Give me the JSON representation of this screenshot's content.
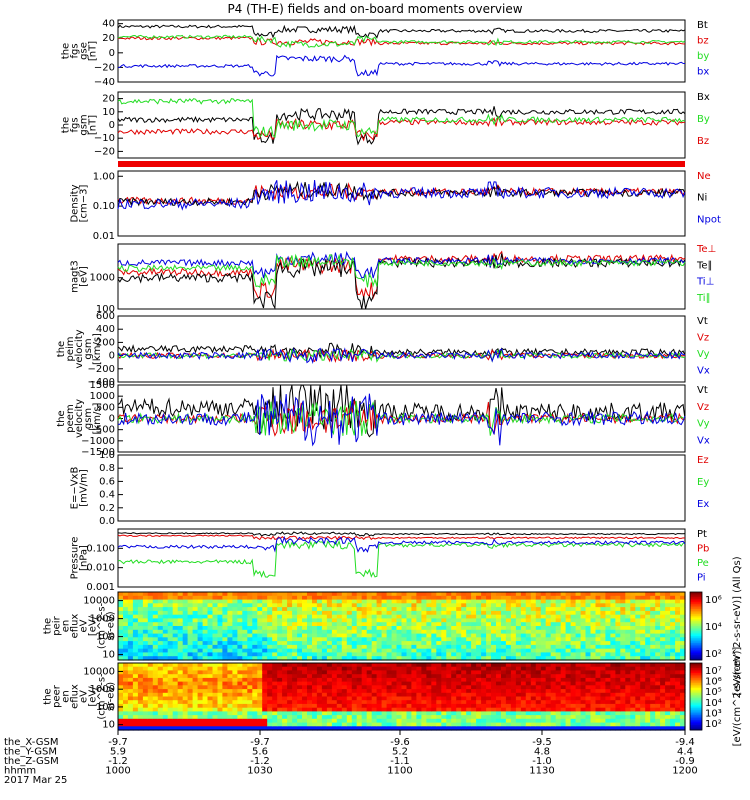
{
  "title": "P4 (TH-E) fields and on-board moments overview",
  "colors": {
    "black": "#000000",
    "red": "#e00000",
    "green": "#22dd22",
    "blue": "#0000e0"
  },
  "panels": [
    {
      "id": "fgs-gse",
      "ylabel": [
        "the",
        "fgs",
        "gse",
        "[nT]"
      ],
      "ticks": [
        "40",
        "20",
        "0",
        "−20",
        "−40"
      ],
      "tick_vals": [
        40,
        20,
        0,
        -20,
        -40
      ],
      "ylim": [
        -40,
        45
      ],
      "legend": [
        "Bt",
        "bz",
        "by",
        "bx"
      ],
      "legend_colors": [
        "black",
        "red",
        "green",
        "blue"
      ]
    },
    {
      "id": "fgs-gsm",
      "ylabel": [
        "the",
        "fgs",
        "gsm",
        "[nT]"
      ],
      "ticks": [
        "20",
        "10",
        "0",
        "−10",
        "−20"
      ],
      "tick_vals": [
        20,
        10,
        0,
        -10,
        -20
      ],
      "ylim": [
        -25,
        25
      ],
      "legend": [
        "Bx",
        "By",
        "Bz"
      ],
      "legend_colors": [
        "black",
        "green",
        "red"
      ]
    },
    {
      "id": "density",
      "ylabel": [
        "Density",
        "[cm−3]"
      ],
      "ticks": [
        "1.00",
        "0.10",
        "0.01"
      ],
      "tick_vals": [
        1.0,
        0.1,
        0.01
      ],
      "ylim": [
        0.01,
        1.5
      ],
      "log": true,
      "legend": [
        "Ne",
        "Ni",
        "Npot"
      ],
      "legend_colors": [
        "red",
        "black",
        "blue"
      ]
    },
    {
      "id": "temperature",
      "ylabel": [
        "magt3",
        "[eV]"
      ],
      "ticks": [
        "1000",
        "100"
      ],
      "tick_vals": [
        1000,
        100
      ],
      "ylim": [
        100,
        12000
      ],
      "log": true,
      "legend": [
        "Te⊥",
        "Te∥",
        "Ti⊥",
        "Ti∥"
      ],
      "legend_colors": [
        "red",
        "black",
        "blue",
        "green"
      ]
    },
    {
      "id": "peim-velocity",
      "ylabel": [
        "the",
        "peim",
        "velocity",
        "gsm",
        "[km/s]"
      ],
      "ticks": [
        "600",
        "400",
        "200",
        "0",
        "−200",
        "−400"
      ],
      "tick_vals": [
        600,
        400,
        200,
        0,
        -200,
        -400
      ],
      "ylim": [
        -400,
        600
      ],
      "legend": [
        "Vt",
        "Vz",
        "Vy",
        "Vx"
      ],
      "legend_colors": [
        "black",
        "red",
        "green",
        "blue"
      ]
    },
    {
      "id": "peem-velocity",
      "ylabel": [
        "the",
        "peem",
        "velocity",
        "gsm",
        "[km/s]"
      ],
      "ticks": [
        "1500",
        "1000",
        "500",
        "0",
        "−500",
        "−1000",
        "−1500"
      ],
      "tick_vals": [
        1500,
        1000,
        500,
        0,
        -500,
        -1000,
        -1500
      ],
      "ylim": [
        -1500,
        1500
      ],
      "legend": [
        "Vt",
        "Vz",
        "Vy",
        "Vx"
      ],
      "legend_colors": [
        "black",
        "red",
        "green",
        "blue"
      ]
    },
    {
      "id": "efield",
      "ylabel": [
        "E=−VxB",
        "[mV/m]"
      ],
      "ticks": [
        "1.0",
        "0.8",
        "0.6",
        "0.4",
        "0.2",
        "0.0"
      ],
      "tick_vals": [
        1.0,
        0.8,
        0.6,
        0.4,
        0.2,
        0.0
      ],
      "ylim": [
        0,
        1
      ],
      "legend": [
        "Ez",
        "Ey",
        "Ex"
      ],
      "legend_colors": [
        "red",
        "green",
        "blue"
      ]
    },
    {
      "id": "pressure",
      "ylabel": [
        "Pressure",
        "[nPa]"
      ],
      "ticks": [
        "0.100",
        "0.010",
        "0.001"
      ],
      "tick_vals": [
        0.1,
        0.01,
        0.001
      ],
      "ylim": [
        0.001,
        1.0
      ],
      "log": true,
      "legend": [
        "Pt",
        "Pb",
        "Pe",
        "Pi"
      ],
      "legend_colors": [
        "black",
        "red",
        "green",
        "blue"
      ]
    },
    {
      "id": "ion-spectrogram",
      "ylabel": [
        "the",
        "peir",
        "en",
        "eflux",
        "eV",
        "[eV/",
        "(cm^2-s-",
        "sr-eV)"
      ],
      "ticks": [
        "10000",
        "1000",
        "100",
        "10"
      ],
      "tick_vals": [
        10000,
        1000,
        100,
        10
      ],
      "ylim": [
        5,
        30000
      ],
      "log": true,
      "colorbar": {
        "ticks": [
          "10⁶",
          "10⁴",
          "10²"
        ],
        "label": "[eV/(cm^2-s-sr-eV)] (All Qs)"
      }
    },
    {
      "id": "electron-spectrogram",
      "ylabel": [
        "the",
        "peer",
        "en",
        "eflux",
        "eV",
        "[eV/",
        "(cm^2-s-",
        "sr-eV)"
      ],
      "ticks": [
        "10000",
        "1000",
        "100",
        "10"
      ],
      "tick_vals": [
        10000,
        1000,
        100,
        10
      ],
      "ylim": [
        5,
        30000
      ],
      "log": true,
      "colorbar": {
        "ticks": [
          "10⁷",
          "10⁶",
          "10⁵",
          "10⁴",
          "10³",
          "10²"
        ],
        "label": "[eV/(cm^2-s-sr-eV)]"
      }
    }
  ],
  "orbit": {
    "rows": [
      {
        "label": "the_X-GSM",
        "values": [
          "-9.7",
          "-9.7",
          "-9.6",
          "-9.5",
          "-9.4"
        ]
      },
      {
        "label": "the_Y-GSM",
        "values": [
          "5.9",
          "5.6",
          "5.2",
          "4.8",
          "4.4"
        ]
      },
      {
        "label": "the_Z-GSM",
        "values": [
          "-1.2",
          "-1.2",
          "-1.1",
          "-1.0",
          "-0.9"
        ]
      },
      {
        "label": "hhmm",
        "values": [
          "1000",
          "1030",
          "1100",
          "1130",
          "1200"
        ]
      }
    ],
    "date": "2017 Mar 25"
  },
  "chart_data": {
    "type": "line",
    "title": "P4 (TH-E) fields and on-board moments overview",
    "x": [
      "1000",
      "1030",
      "1100",
      "1130",
      "1200"
    ],
    "xlabel": "hhmm",
    "series": [
      {
        "name": "Bt",
        "values": [
          35,
          32,
          30,
          28,
          30
        ]
      },
      {
        "name": "bz",
        "values": [
          18,
          15,
          10,
          12,
          12
        ]
      },
      {
        "name": "by",
        "values": [
          20,
          18,
          12,
          15,
          15
        ]
      },
      {
        "name": "bx",
        "values": [
          -18,
          -25,
          -5,
          -12,
          -15
        ]
      }
    ]
  }
}
